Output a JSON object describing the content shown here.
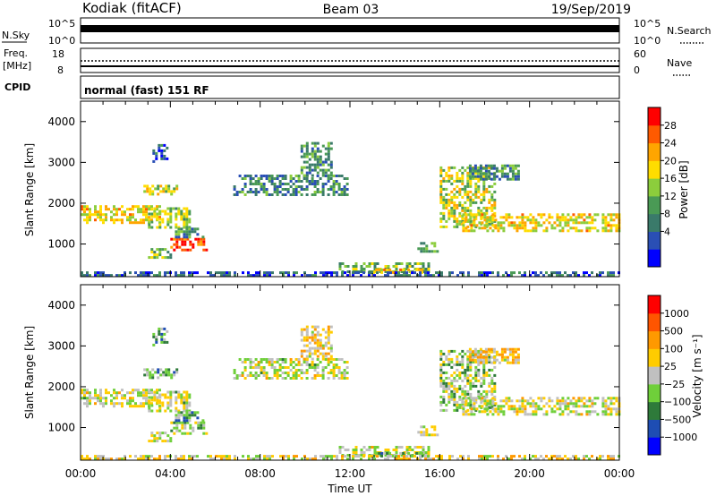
{
  "header": {
    "station": "Kodiak (fitACF)",
    "beam": "Beam 03",
    "date": "19/Sep/2019"
  },
  "status_panels": {
    "nsky": {
      "label": "N.Sky",
      "top_tick": "10^5",
      "bottom_tick": "10^0"
    },
    "nsearch": {
      "label": "N.Search",
      "top_tick": "10^5",
      "bottom_tick": "10^0"
    },
    "freq": {
      "label_line1": "Freq.",
      "label_line2": "[MHz]",
      "top_tick": "18",
      "bottom_tick": "8"
    },
    "nave": {
      "label": "Nave",
      "top_tick": "60",
      "bottom_tick": "0"
    },
    "cpid": {
      "label": "CPID",
      "value": "normal (fast) 151 RF"
    }
  },
  "colors": {
    "power_scale": [
      "#0000ff",
      "#2a4fb5",
      "#3a7a6a",
      "#4a9a55",
      "#8ccd3c",
      "#ffdd00",
      "#ffa500",
      "#ff5a00",
      "#ff0000"
    ],
    "velocity_scale": [
      "#0000ff",
      "#1e4db3",
      "#2e7a3a",
      "#6fcf3a",
      "#c0c0c0",
      "#ffcc00",
      "#ff9900",
      "#ff5500",
      "#ff0000"
    ]
  },
  "chart_data": [
    {
      "type": "heatmap",
      "panel": "power",
      "ylabel": "Slant Range [km]",
      "xlabel": "",
      "ylim": [
        200,
        4500
      ],
      "xlim": [
        0,
        24
      ],
      "yticks": [
        "1000",
        "2000",
        "3000",
        "4000"
      ],
      "colorbar": {
        "label": "Power [dB]",
        "ticks": [
          "28",
          "24",
          "20",
          "16",
          "12",
          "8",
          "4"
        ],
        "range": [
          0,
          32
        ]
      },
      "regions": [
        {
          "t0": 0.0,
          "t1": 3.5,
          "r0": 1550,
          "r1": 1950,
          "level": 0.62
        },
        {
          "t0": 3.0,
          "t1": 4.8,
          "r0": 1400,
          "r1": 1900,
          "level": 0.5
        },
        {
          "t0": 2.8,
          "t1": 4.3,
          "r0": 2250,
          "r1": 2450,
          "level": 0.55
        },
        {
          "t0": 4.0,
          "t1": 5.6,
          "r0": 850,
          "r1": 1150,
          "level": 0.9
        },
        {
          "t0": 3.0,
          "t1": 4.0,
          "r0": 650,
          "r1": 900,
          "level": 0.45
        },
        {
          "t0": 4.2,
          "t1": 5.4,
          "r0": 1200,
          "r1": 1400,
          "level": 0.3
        },
        {
          "t0": 6.8,
          "t1": 11.9,
          "r0": 2200,
          "r1": 2700,
          "level": 0.32
        },
        {
          "t0": 9.8,
          "t1": 11.2,
          "r0": 2650,
          "r1": 3500,
          "level": 0.35
        },
        {
          "t0": 11.5,
          "t1": 15.5,
          "r0": 350,
          "r1": 550,
          "level": 0.45
        },
        {
          "t0": 13.0,
          "t1": 15.2,
          "r0": 280,
          "r1": 400,
          "level": 0.7
        },
        {
          "t0": 15.0,
          "t1": 15.9,
          "r0": 850,
          "r1": 1050,
          "level": 0.35
        },
        {
          "t0": 16.0,
          "t1": 18.5,
          "r0": 1400,
          "r1": 2900,
          "level": 0.55
        },
        {
          "t0": 17.0,
          "t1": 24.0,
          "r0": 1350,
          "r1": 1750,
          "level": 0.62
        },
        {
          "t0": 17.3,
          "t1": 19.5,
          "r0": 2600,
          "r1": 2950,
          "level": 0.3
        },
        {
          "t0": 0.0,
          "t1": 24.0,
          "r0": 200,
          "r1": 330,
          "level": 0.2
        },
        {
          "t0": 3.2,
          "t1": 3.8,
          "r0": 3000,
          "r1": 3450,
          "level": 0.2
        }
      ]
    },
    {
      "type": "heatmap",
      "panel": "velocity",
      "ylabel": "Slant Range [km]",
      "xlabel": "Time UT",
      "ylim": [
        200,
        4500
      ],
      "xlim": [
        0,
        24
      ],
      "xticks": [
        "00:00",
        "04:00",
        "08:00",
        "12:00",
        "16:00",
        "20:00",
        "00:00"
      ],
      "yticks": [
        "1000",
        "2000",
        "3000",
        "4000"
      ],
      "colorbar": {
        "label": "Velocity [m s⁻¹]",
        "ticks": [
          "1000",
          "500",
          "100",
          "25",
          "−25",
          "−100",
          "−500",
          "−1000"
        ],
        "range": [
          -1200,
          1200
        ]
      },
      "regions": [
        {
          "t0": 0.0,
          "t1": 3.5,
          "r0": 1550,
          "r1": 1950,
          "level": 0.5
        },
        {
          "t0": 3.0,
          "t1": 4.8,
          "r0": 1400,
          "r1": 1900,
          "level": 0.5
        },
        {
          "t0": 2.8,
          "t1": 4.3,
          "r0": 2250,
          "r1": 2450,
          "level": 0.35
        },
        {
          "t0": 4.0,
          "t1": 5.6,
          "r0": 850,
          "r1": 1150,
          "level": 0.45
        },
        {
          "t0": 3.0,
          "t1": 4.0,
          "r0": 650,
          "r1": 900,
          "level": 0.5
        },
        {
          "t0": 4.2,
          "t1": 5.4,
          "r0": 1200,
          "r1": 1400,
          "level": 0.3
        },
        {
          "t0": 6.8,
          "t1": 11.9,
          "r0": 2200,
          "r1": 2700,
          "level": 0.5
        },
        {
          "t0": 9.8,
          "t1": 11.2,
          "r0": 2650,
          "r1": 3500,
          "level": 0.6
        },
        {
          "t0": 11.5,
          "t1": 15.5,
          "r0": 350,
          "r1": 550,
          "level": 0.5
        },
        {
          "t0": 13.0,
          "t1": 15.2,
          "r0": 280,
          "r1": 400,
          "level": 0.35
        },
        {
          "t0": 15.0,
          "t1": 15.9,
          "r0": 850,
          "r1": 1050,
          "level": 0.5
        },
        {
          "t0": 16.0,
          "t1": 18.5,
          "r0": 1400,
          "r1": 2900,
          "level": 0.45
        },
        {
          "t0": 17.0,
          "t1": 24.0,
          "r0": 1350,
          "r1": 1750,
          "level": 0.52
        },
        {
          "t0": 17.3,
          "t1": 19.5,
          "r0": 2600,
          "r1": 2950,
          "level": 0.6
        },
        {
          "t0": 0.0,
          "t1": 24.0,
          "r0": 200,
          "r1": 330,
          "level": 0.55
        },
        {
          "t0": 3.2,
          "t1": 3.8,
          "r0": 3000,
          "r1": 3450,
          "level": 0.35
        }
      ]
    }
  ]
}
